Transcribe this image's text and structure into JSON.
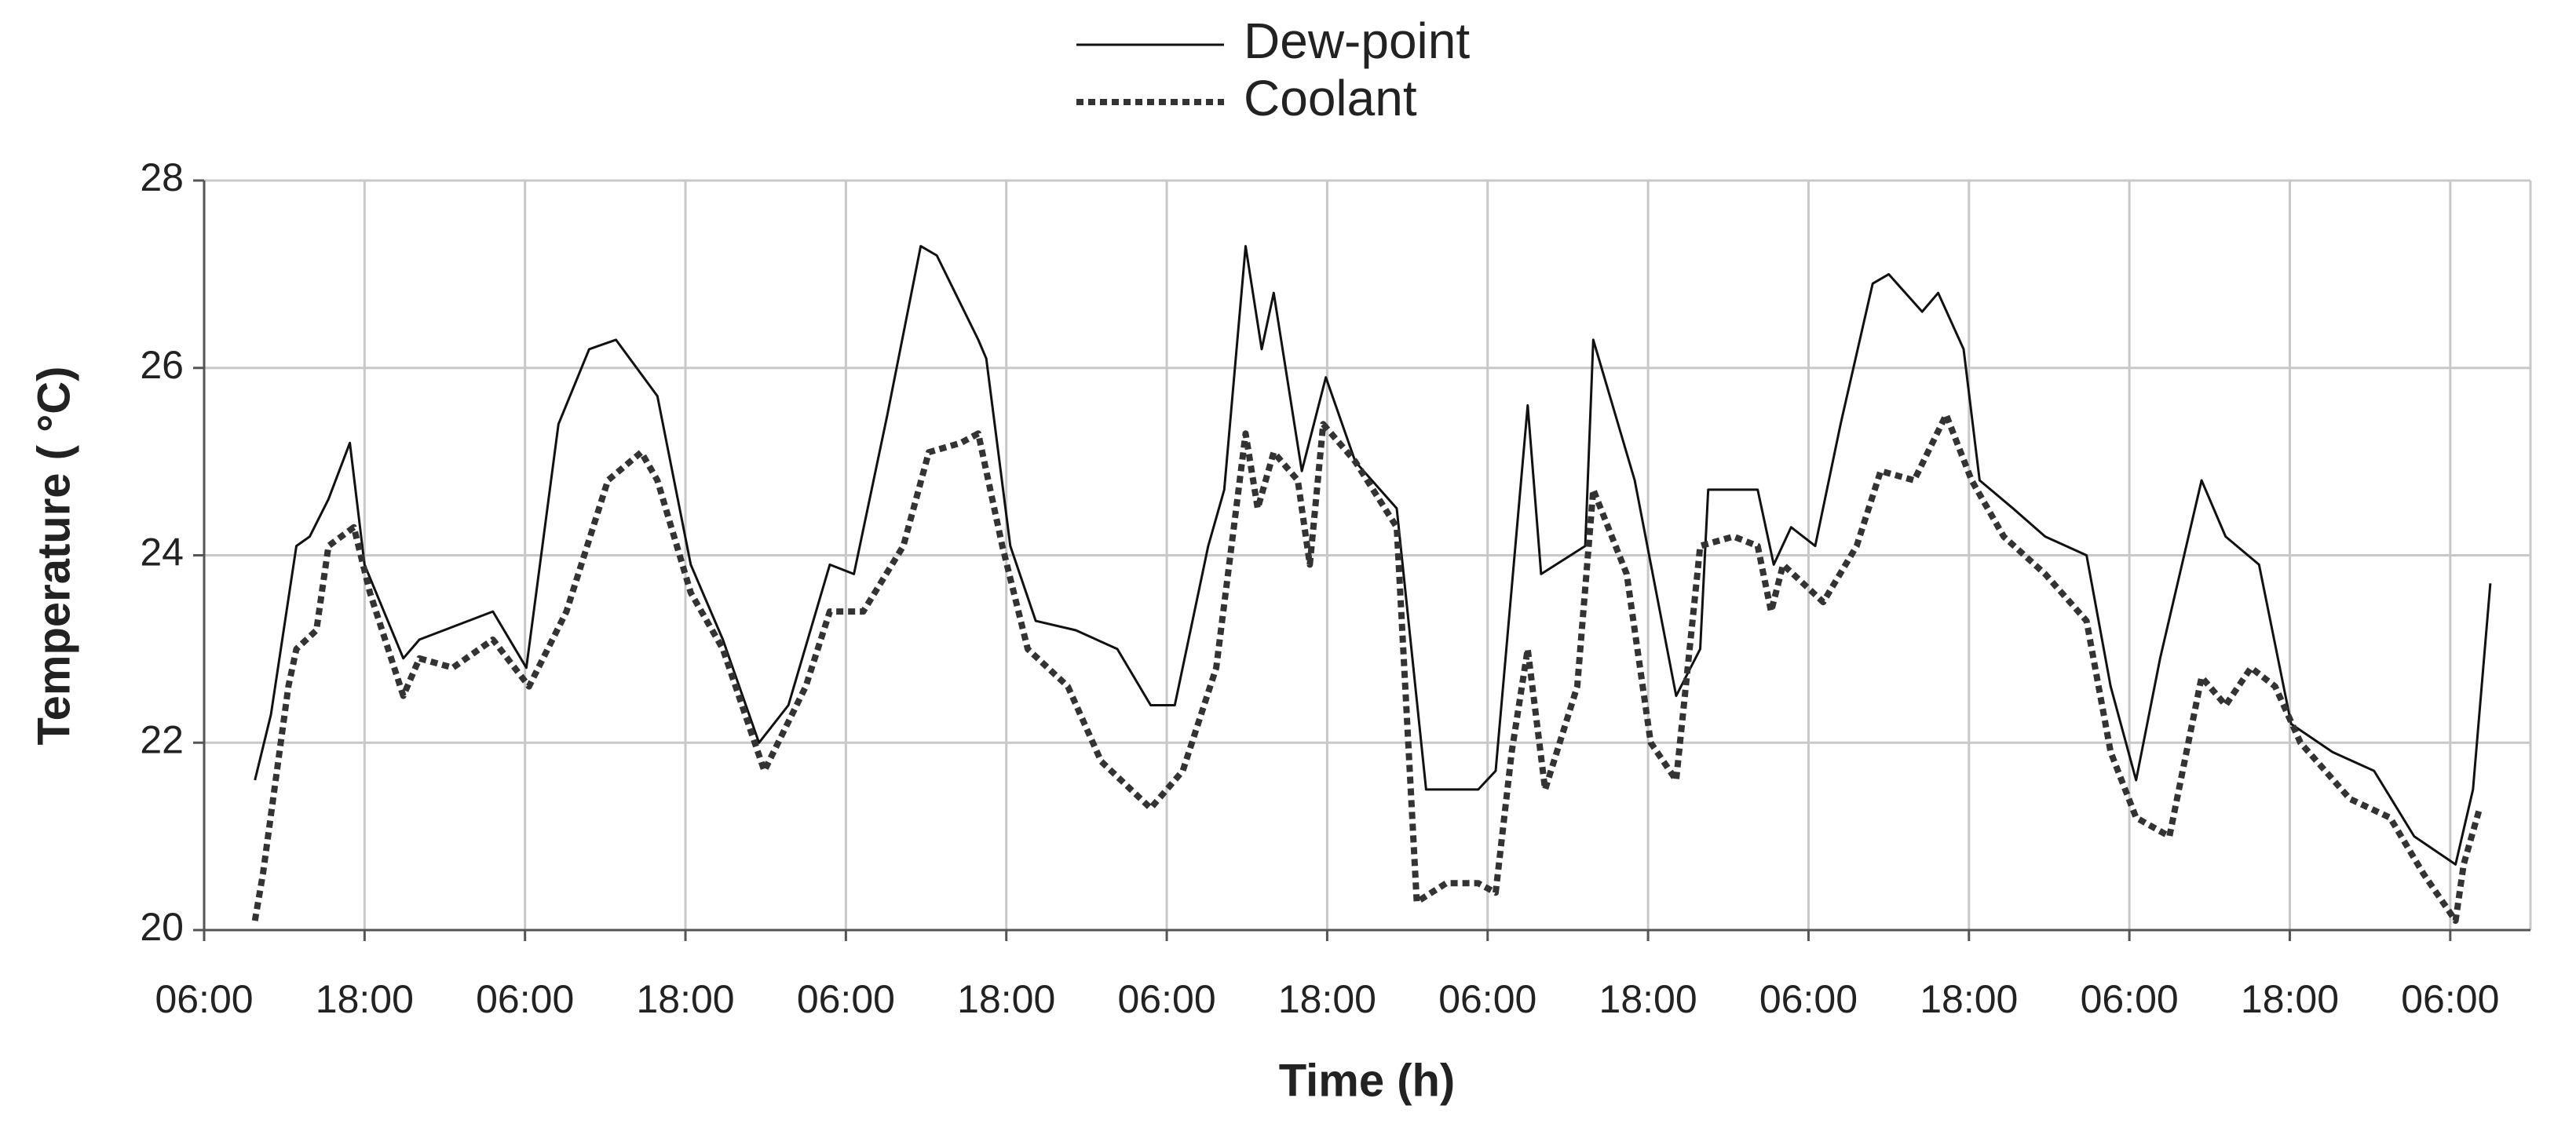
{
  "chart_data": {
    "type": "line",
    "x_label": "Time (h)",
    "y_label": "Temperature ( °C)",
    "xlim": [
      0,
      174
    ],
    "ylim": [
      20,
      28
    ],
    "xticks": [
      {
        "value": 0,
        "label": "06:00"
      },
      {
        "value": 12,
        "label": "18:00"
      },
      {
        "value": 24,
        "label": "06:00"
      },
      {
        "value": 36,
        "label": "18:00"
      },
      {
        "value": 48,
        "label": "06:00"
      },
      {
        "value": 60,
        "label": "18:00"
      },
      {
        "value": 72,
        "label": "06:00"
      },
      {
        "value": 84,
        "label": "18:00"
      },
      {
        "value": 96,
        "label": "06:00"
      },
      {
        "value": 108,
        "label": "18:00"
      },
      {
        "value": 120,
        "label": "06:00"
      },
      {
        "value": 132,
        "label": "18:00"
      },
      {
        "value": 144,
        "label": "06:00"
      },
      {
        "value": 156,
        "label": "18:00"
      },
      {
        "value": 168,
        "label": "06:00"
      }
    ],
    "yticks": [
      20,
      22,
      24,
      26,
      28
    ],
    "grid": true,
    "legend": "top",
    "series": [
      {
        "name": "Dew-point",
        "color": "#111111",
        "style": "solid",
        "x": [
          3.8,
          5.0,
          6.9,
          7.9,
          9.3,
          10.9,
          12.0,
          14.9,
          16.1,
          21.6,
          24.1,
          26.5,
          28.8,
          30.8,
          33.9,
          36.4,
          38.8,
          41.5,
          43.7,
          46.8,
          48.6,
          51.1,
          53.6,
          54.8,
          57.9,
          58.5,
          60.3,
          62.2,
          65.2,
          68.3,
          70.8,
          72.6,
          75.1,
          76.3,
          77.9,
          79.1,
          80.0,
          82.1,
          83.9,
          86.1,
          89.2,
          91.4,
          95.3,
          96.6,
          99.0,
          100.0,
          103.3,
          103.9,
          107.0,
          110.1,
          111.9,
          112.5,
          116.2,
          117.4,
          118.7,
          120.5,
          122.4,
          124.8,
          126.0,
          128.5,
          129.7,
          131.6,
          132.8,
          135.3,
          137.7,
          140.8,
          142.6,
          144.5,
          146.3,
          149.4,
          151.2,
          153.7,
          156.1,
          159.2,
          162.3,
          165.3,
          168.4,
          169.7,
          171.0
        ],
        "values": [
          21.6,
          22.3,
          24.1,
          24.2,
          24.6,
          25.2,
          23.9,
          22.9,
          23.1,
          23.4,
          22.8,
          25.4,
          26.2,
          26.3,
          25.7,
          23.9,
          23.1,
          22.0,
          22.4,
          23.9,
          23.8,
          25.5,
          27.3,
          27.2,
          26.3,
          26.1,
          24.1,
          23.3,
          23.2,
          23.0,
          22.4,
          22.4,
          24.1,
          24.7,
          27.3,
          26.2,
          26.8,
          24.9,
          25.9,
          25.0,
          24.5,
          21.5,
          21.5,
          21.7,
          25.6,
          23.8,
          24.1,
          26.3,
          24.8,
          22.5,
          23.0,
          24.7,
          24.7,
          23.9,
          24.3,
          24.1,
          25.4,
          26.9,
          27.0,
          26.6,
          26.8,
          26.2,
          24.8,
          24.5,
          24.2,
          24.0,
          22.6,
          21.6,
          22.9,
          24.8,
          24.2,
          23.9,
          22.2,
          21.9,
          21.7,
          21.0,
          20.7,
          21.5,
          23.7
        ]
      },
      {
        "name": "Coolant",
        "color": "#333333",
        "style": "dotted",
        "x": [
          3.8,
          4.4,
          6.3,
          6.9,
          8.4,
          9.3,
          11.2,
          12.4,
          14.9,
          16.1,
          18.6,
          21.6,
          24.3,
          27.1,
          30.2,
          32.7,
          33.9,
          36.4,
          38.8,
          41.9,
          45.0,
          46.8,
          49.3,
          52.3,
          54.2,
          56.6,
          57.9,
          59.7,
          61.6,
          64.6,
          67.1,
          70.8,
          73.2,
          75.7,
          77.9,
          78.8,
          80.0,
          81.8,
          82.7,
          83.7,
          86.1,
          89.2,
          90.7,
          92.9,
          95.3,
          96.6,
          97.8,
          99.0,
          100.3,
          102.7,
          103.9,
          106.4,
          108.2,
          110.1,
          111.9,
          114.4,
          116.2,
          117.2,
          118.1,
          121.1,
          123.6,
          125.4,
          127.9,
          130.3,
          132.2,
          134.6,
          137.7,
          140.8,
          142.6,
          144.5,
          147.0,
          149.4,
          151.2,
          153.1,
          154.9,
          156.8,
          160.5,
          163.5,
          166.0,
          168.4,
          169.0,
          170.2
        ],
        "values": [
          20.1,
          20.6,
          22.6,
          23.0,
          23.2,
          24.1,
          24.3,
          23.6,
          22.5,
          22.9,
          22.8,
          23.1,
          22.6,
          23.4,
          24.8,
          25.1,
          24.8,
          23.6,
          23.0,
          21.7,
          22.6,
          23.4,
          23.4,
          24.1,
          25.1,
          25.2,
          25.3,
          24.1,
          23.0,
          22.6,
          21.8,
          21.3,
          21.7,
          22.8,
          25.3,
          24.5,
          25.1,
          24.8,
          23.9,
          25.4,
          25.0,
          24.3,
          20.3,
          20.5,
          20.5,
          20.4,
          21.9,
          23.0,
          21.5,
          22.6,
          24.7,
          23.8,
          22.0,
          21.6,
          24.1,
          24.2,
          24.1,
          23.4,
          23.9,
          23.5,
          24.1,
          24.9,
          24.8,
          25.5,
          24.8,
          24.2,
          23.8,
          23.3,
          21.9,
          21.2,
          21.0,
          22.7,
          22.4,
          22.8,
          22.6,
          22.0,
          21.4,
          21.2,
          20.6,
          20.1,
          20.7,
          21.3
        ]
      }
    ]
  }
}
